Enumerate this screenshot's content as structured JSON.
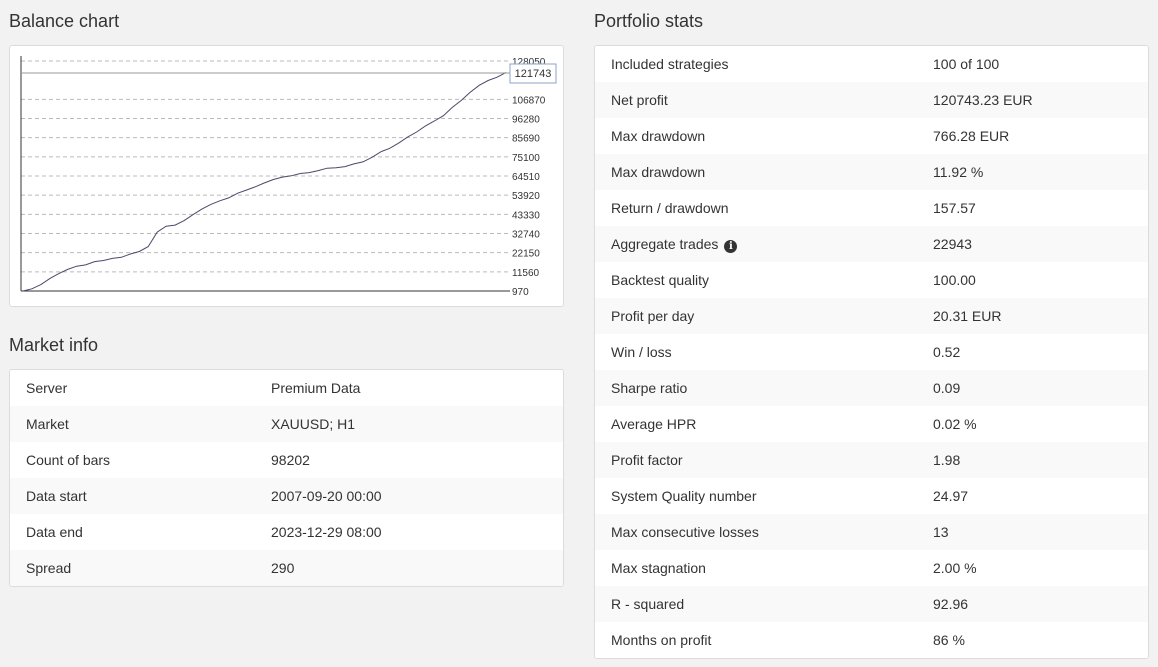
{
  "balance": {
    "title": "Balance chart"
  },
  "chart_data": {
    "type": "line",
    "y_ticks": [
      128050,
      106870,
      96280,
      85690,
      75100,
      64510,
      53920,
      43330,
      32740,
      22150,
      11560,
      970
    ],
    "ylim": [
      970,
      128050
    ],
    "current_value": "121743",
    "grid": true,
    "series": [
      {
        "values": [
          970,
          2200,
          4500,
          7800,
          10600,
          12900,
          14700,
          15400,
          17200,
          17800,
          19000,
          19600,
          21400,
          22800,
          25500,
          33500,
          36800,
          37400,
          39800,
          43100,
          46200,
          48800,
          50800,
          52400,
          55000,
          56800,
          58600,
          60700,
          62600,
          63900,
          64600,
          65900,
          66400,
          67500,
          68800,
          69100,
          69700,
          71200,
          72300,
          74800,
          77900,
          79800,
          82700,
          86000,
          88800,
          92200,
          94900,
          97800,
          102400,
          106300,
          110800,
          114600,
          117300,
          119100,
          121743
        ]
      }
    ]
  },
  "market": {
    "title": "Market info",
    "rows": [
      {
        "label": "Server",
        "value": "Premium Data"
      },
      {
        "label": "Market",
        "value": "XAUUSD; H1"
      },
      {
        "label": "Count of bars",
        "value": "98202"
      },
      {
        "label": "Data start",
        "value": "2007-09-20 00:00"
      },
      {
        "label": "Data end",
        "value": "2023-12-29 08:00"
      },
      {
        "label": "Spread",
        "value": "290"
      }
    ]
  },
  "stats": {
    "title": "Portfolio stats",
    "info_icon": "info-circle-icon",
    "rows": [
      {
        "label": "Included strategies",
        "value": "100 of 100"
      },
      {
        "label": "Net profit",
        "value": "120743.23 EUR"
      },
      {
        "label": "Max drawdown",
        "value": "766.28 EUR"
      },
      {
        "label": "Max drawdown",
        "value": "11.92 %"
      },
      {
        "label": "Return / drawdown",
        "value": "157.57"
      },
      {
        "label": "Aggregate trades",
        "value": "22943"
      },
      {
        "label": "Backtest quality",
        "value": "100.00"
      },
      {
        "label": "Profit per day",
        "value": "20.31 EUR"
      },
      {
        "label": "Win / loss",
        "value": "0.52"
      },
      {
        "label": "Sharpe ratio",
        "value": "0.09"
      },
      {
        "label": "Average HPR",
        "value": "0.02 %"
      },
      {
        "label": "Profit factor",
        "value": "1.98"
      },
      {
        "label": "System Quality number",
        "value": "24.97"
      },
      {
        "label": "Max consecutive losses",
        "value": "13"
      },
      {
        "label": "Max stagnation",
        "value": "2.00 %"
      },
      {
        "label": "R - squared",
        "value": "92.96"
      },
      {
        "label": "Months on profit",
        "value": "86 %"
      }
    ]
  }
}
